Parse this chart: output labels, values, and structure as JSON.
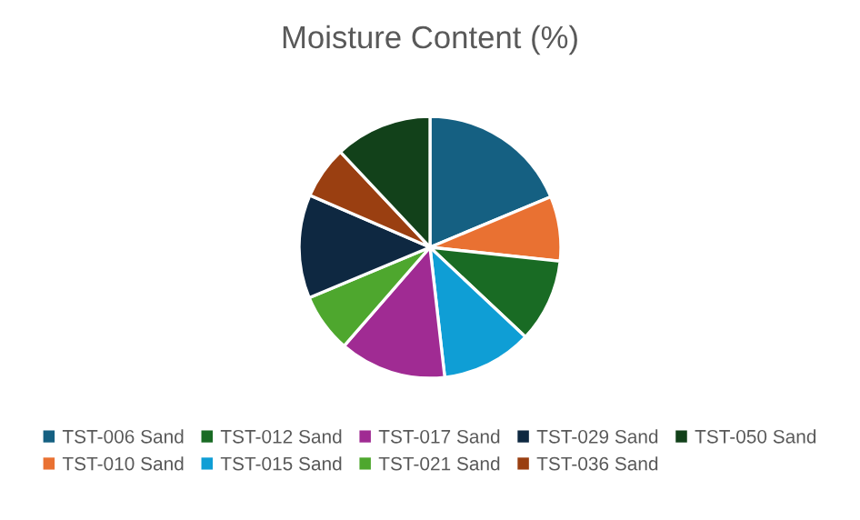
{
  "chart_data": {
    "type": "pie",
    "title": "Moisture Content (%)",
    "categories": [
      "TST-006 Sand",
      "TST-010 Sand",
      "TST-012 Sand",
      "TST-015 Sand",
      "TST-017 Sand",
      "TST-021 Sand",
      "TST-029 Sand",
      "TST-036 Sand",
      "TST-050 Sand"
    ],
    "values": [
      18.7,
      8.0,
      10.3,
      11.2,
      13.2,
      7.3,
      12.8,
      6.5,
      12.0
    ],
    "colors": [
      "#156082",
      "#e97132",
      "#196b24",
      "#0f9ed5",
      "#a02b93",
      "#4ea72e",
      "#0e2841",
      "#9a3f11",
      "#12411a"
    ],
    "legend": "bottom"
  }
}
